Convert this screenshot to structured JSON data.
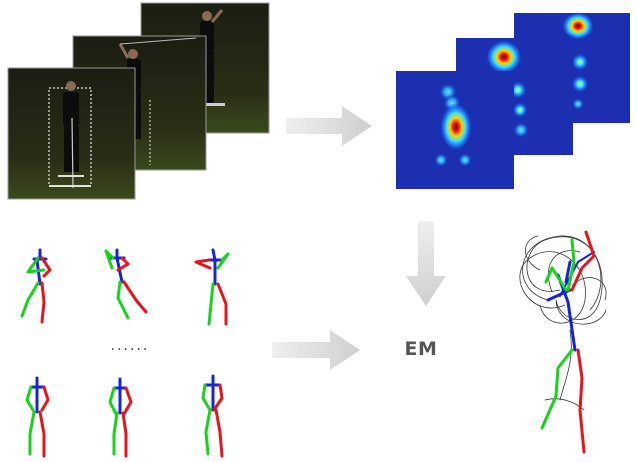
{
  "labels": {
    "em": "EM",
    "ellipsis": "......"
  },
  "icons": {
    "arrow": "right-arrow-icon",
    "down_arrow": "down-arrow-icon"
  },
  "colors": {
    "limb_right": "#e8141b",
    "limb_left": "#19d21c",
    "torso": "#1424d6",
    "arrow": "#d9d9d9",
    "heatmap_bg": "#1b2fb0"
  }
}
